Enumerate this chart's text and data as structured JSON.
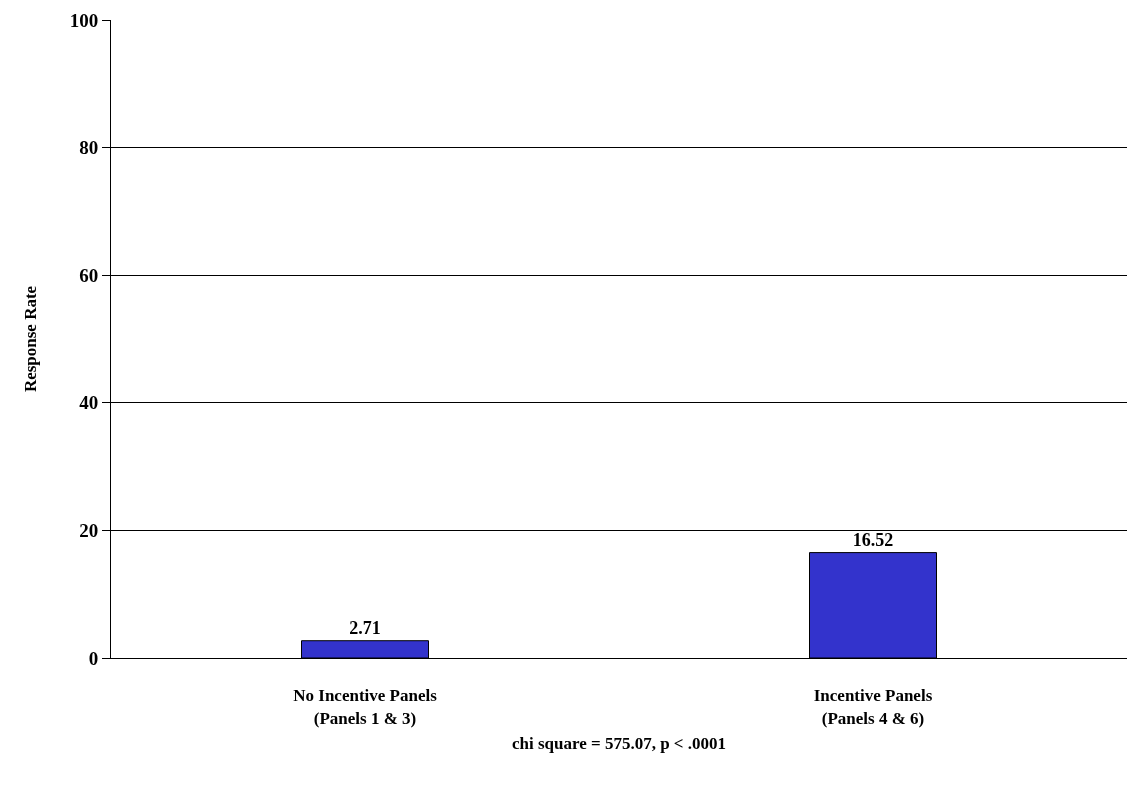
{
  "chart_data": {
    "type": "bar",
    "categories": [
      "No Incentive Panels\n(Panels 1 & 3)",
      "Incentive Panels\n(Panels 4 & 6)"
    ],
    "values": [
      2.71,
      16.52
    ],
    "color": "#3333cc",
    "ylabel": "Response Rate",
    "xlabel": "chi square = 575.07, p < .0001",
    "ylim": [
      0,
      100
    ],
    "yticks": [
      0,
      20,
      40,
      60,
      80,
      100
    ],
    "grid": "y",
    "data_labels": true
  }
}
